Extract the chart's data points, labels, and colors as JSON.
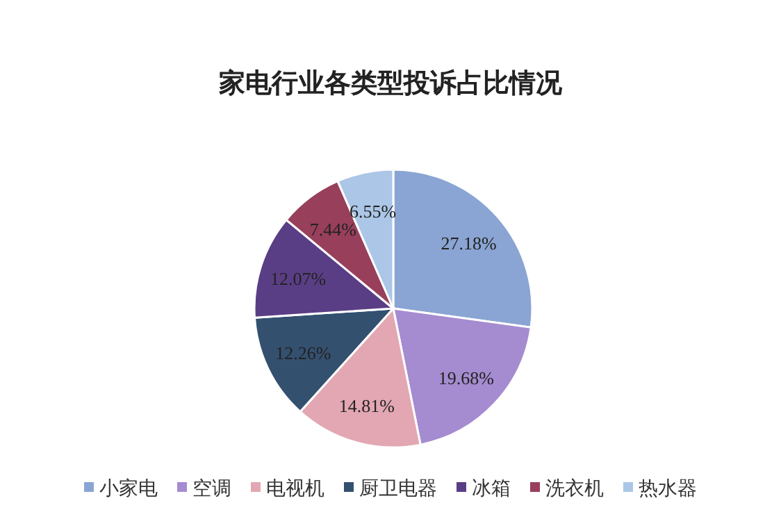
{
  "chart_data": {
    "type": "pie",
    "title": "家电行业各类型投诉占比情况",
    "categories": [
      "小家电",
      "空调",
      "电视机",
      "厨卫电器",
      "冰箱",
      "洗衣机",
      "热水器"
    ],
    "values": [
      27.18,
      19.68,
      14.81,
      12.26,
      12.07,
      7.44,
      6.55
    ],
    "colors": [
      "#8aa5d3",
      "#a58bd0",
      "#e2a7b3",
      "#34506f",
      "#5a3e85",
      "#983f5c",
      "#abc6e6"
    ],
    "value_labels": [
      "27.18%",
      "19.68%",
      "14.81%",
      "12.26%",
      "12.07%",
      "7.44%",
      "6.55%"
    ],
    "legend": "bottom"
  }
}
